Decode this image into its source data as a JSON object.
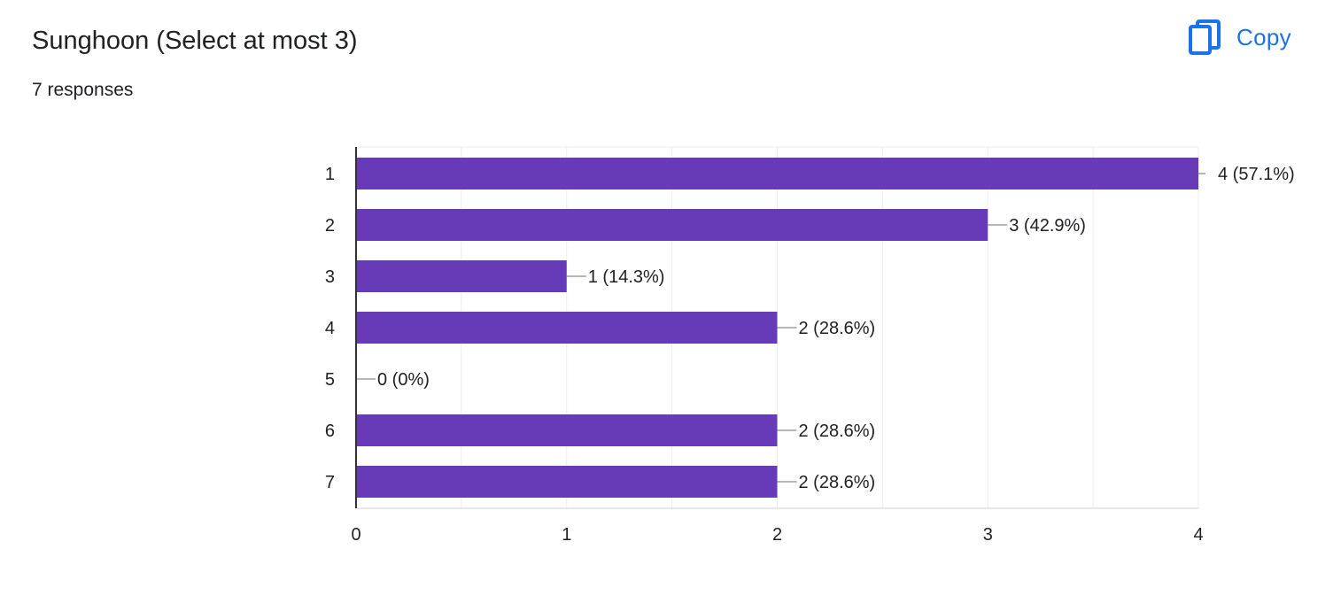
{
  "header": {
    "title": "Sunghoon (Select at most 3)",
    "responses": "7 responses",
    "copy_label": "Copy",
    "copy_icon": "copy-icon",
    "accent_color": "#1a73e8"
  },
  "chart_data": {
    "type": "bar",
    "orientation": "horizontal",
    "categories": [
      "1",
      "2",
      "3",
      "4",
      "5",
      "6",
      "7"
    ],
    "values": [
      4,
      3,
      1,
      2,
      0,
      2,
      2
    ],
    "data_labels": [
      "4 (57.1%)",
      "3 (42.9%)",
      "1 (14.3%)",
      "2 (28.6%)",
      "0 (0%)",
      "2 (28.6%)",
      "2 (28.6%)"
    ],
    "xlim": [
      0,
      4
    ],
    "xticks": [
      "0",
      "1",
      "2",
      "3",
      "4"
    ],
    "grid": true,
    "bar_color": "#673ab7"
  }
}
